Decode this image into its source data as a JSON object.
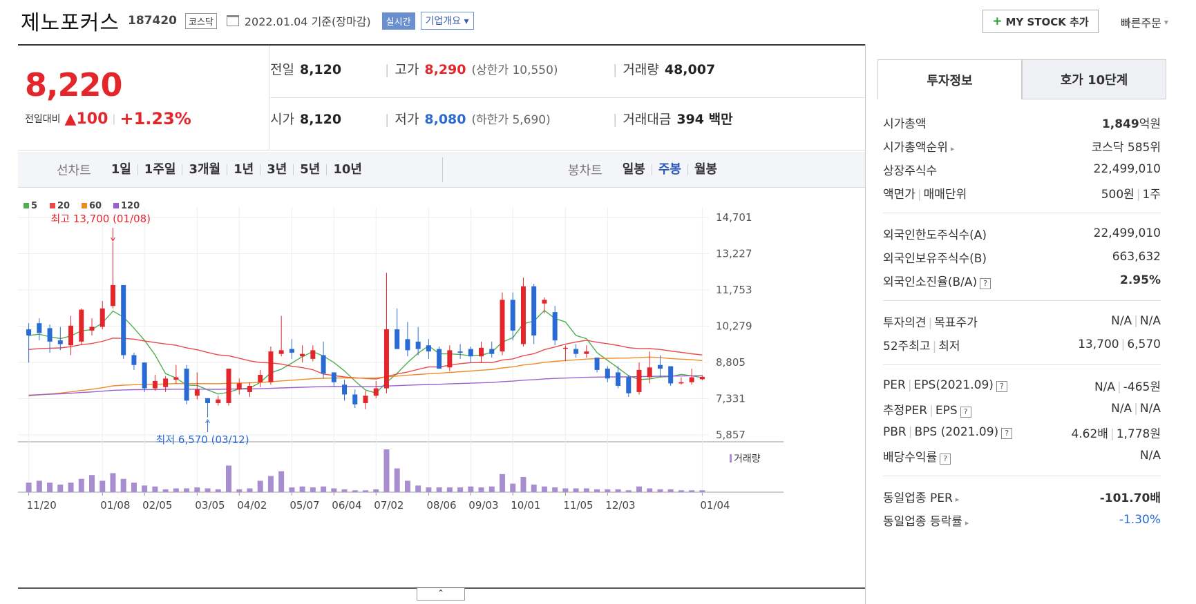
{
  "header": {
    "name": "제노포커스",
    "code": "187420",
    "market": "코스닥",
    "date": "2022.01.04 기준(장마감)",
    "realtime": "실시간",
    "overview": "기업개요",
    "mystock": "MY STOCK 추가",
    "quick_order": "빠른주문"
  },
  "price": {
    "current": "8,220",
    "change_label": "전일대비",
    "change": "100",
    "change_pct": "+1.23%"
  },
  "stats": {
    "prev_label": "전일",
    "prev": "8,120",
    "high_label": "고가",
    "high": "8,290",
    "upper_limit": "(상한가 10,550)",
    "volume_label": "거래량",
    "volume": "48,007",
    "open_label": "시가",
    "open": "8,120",
    "low_label": "저가",
    "low": "8,080",
    "lower_limit": "(하한가 5,690)",
    "amount_label": "거래대금",
    "amount": "394 백만"
  },
  "toolbar": {
    "line_label": "선차트",
    "line_items": [
      "1일",
      "1주일",
      "3개월",
      "1년",
      "3년",
      "5년",
      "10년"
    ],
    "candle_label": "봉차트",
    "candle_items": [
      "일봉",
      "주봉",
      "월봉"
    ],
    "candle_selected": "주봉"
  },
  "chart_data": {
    "type": "candlestick",
    "legend": [
      "5",
      "20",
      "60",
      "120"
    ],
    "legend_colors": [
      "#4caf50",
      "#e84a4a",
      "#f08a24",
      "#9a5fd0"
    ],
    "y_ticks": [
      "14,701",
      "13,227",
      "11,753",
      "10,279",
      "8,805",
      "7,331",
      "5,857"
    ],
    "ylim": [
      5857,
      14701
    ],
    "x_labels": [
      "11/20",
      "01/08",
      "02/05",
      "03/05",
      "04/02",
      "05/07",
      "06/04",
      "07/02",
      "08/06",
      "09/03",
      "10/01",
      "11/05",
      "12/03",
      "01/04"
    ],
    "max_annotation": "최고 13,700 (01/08)",
    "min_annotation": "최저 6,570 (03/12)",
    "volume_label": "거래량",
    "candles": [
      [
        10150,
        9900,
        10400,
        8800
      ],
      [
        10400,
        10000,
        10600,
        9700
      ],
      [
        10200,
        9650,
        10350,
        9200
      ],
      [
        9700,
        9550,
        10250,
        9300
      ],
      [
        9500,
        10300,
        10700,
        9100
      ],
      [
        9650,
        10950,
        11000,
        9500
      ],
      [
        10100,
        10250,
        10600,
        9900
      ],
      [
        10250,
        11000,
        11300,
        10150
      ],
      [
        11100,
        11950,
        13700,
        11000
      ],
      [
        11950,
        9100,
        11950,
        8950
      ],
      [
        9100,
        8700,
        9200,
        8500
      ],
      [
        8800,
        7750,
        8800,
        7600
      ],
      [
        7750,
        8050,
        8300,
        7650
      ],
      [
        7800,
        8150,
        8250,
        7600
      ],
      [
        8100,
        8200,
        8700,
        7950
      ],
      [
        8550,
        7250,
        8700,
        7100
      ],
      [
        7450,
        7700,
        8400,
        7300
      ],
      [
        7350,
        7150,
        7350,
        6570
      ],
      [
        7150,
        7300,
        7450,
        7050
      ],
      [
        7150,
        8550,
        8550,
        7050
      ],
      [
        7700,
        7950,
        8150,
        7500
      ],
      [
        7600,
        7850,
        8000,
        7400
      ],
      [
        8000,
        8300,
        8500,
        7800
      ],
      [
        8000,
        9250,
        9450,
        7900
      ],
      [
        9150,
        9300,
        10700,
        9050
      ],
      [
        9350,
        9200,
        9750,
        8950
      ],
      [
        9050,
        9150,
        9500,
        8800
      ],
      [
        8950,
        9300,
        9500,
        8850
      ],
      [
        9100,
        8350,
        9650,
        8150
      ],
      [
        8400,
        8000,
        8400,
        7800
      ],
      [
        7900,
        7500,
        8100,
        7250
      ],
      [
        7500,
        7100,
        7700,
        6950
      ],
      [
        7150,
        7450,
        7650,
        6900
      ],
      [
        7450,
        7750,
        8050,
        7350
      ],
      [
        7750,
        10150,
        12450,
        7550
      ],
      [
        10150,
        9350,
        11000,
        9350
      ],
      [
        9750,
        9300,
        10450,
        9050
      ],
      [
        9650,
        9350,
        10250,
        9100
      ],
      [
        9500,
        9250,
        9750,
        8950
      ],
      [
        9350,
        8550,
        9450,
        8550
      ],
      [
        8600,
        9300,
        9500,
        8450
      ],
      [
        9250,
        9200,
        9550,
        8950
      ],
      [
        9350,
        9050,
        9450,
        8800
      ],
      [
        9050,
        9400,
        9650,
        8800
      ],
      [
        9350,
        9150,
        9650,
        9000
      ],
      [
        9250,
        11350,
        11650,
        9100
      ],
      [
        11350,
        10100,
        11650,
        9700
      ],
      [
        9550,
        11900,
        12250,
        9450
      ],
      [
        11900,
        9900,
        12000,
        9550
      ],
      [
        11200,
        11350,
        11450,
        10800
      ],
      [
        10850,
        9700,
        11100,
        9500
      ],
      [
        9400,
        9400,
        9500,
        8850
      ],
      [
        9350,
        9150,
        9550,
        9000
      ],
      [
        9150,
        9250,
        9500,
        9000
      ],
      [
        9000,
        8500,
        9000,
        8400
      ],
      [
        8550,
        8150,
        8650,
        8000
      ],
      [
        8400,
        7850,
        8650,
        7750
      ],
      [
        8200,
        7550,
        8300,
        7400
      ],
      [
        7600,
        8500,
        8800,
        7500
      ],
      [
        8200,
        8600,
        9250,
        7950
      ],
      [
        8700,
        8550,
        9100,
        8200
      ],
      [
        8650,
        7950,
        8650,
        7850
      ],
      [
        7950,
        8000,
        8200,
        7900
      ],
      [
        8000,
        8200,
        8550,
        7900
      ],
      [
        8120,
        8220,
        8290,
        8080
      ]
    ],
    "volumes": [
      10,
      12,
      10,
      8,
      10,
      14,
      18,
      12,
      20,
      14,
      10,
      7,
      6,
      3,
      4,
      4,
      5,
      4,
      3,
      28,
      3,
      4,
      12,
      17,
      22,
      5,
      6,
      5,
      6,
      4,
      3,
      2,
      2,
      3,
      45,
      25,
      12,
      7,
      5,
      5,
      5,
      5,
      6,
      5,
      6,
      19,
      9,
      16,
      8,
      6,
      5,
      4,
      4,
      4,
      3,
      3,
      3,
      2,
      6,
      4,
      3,
      3,
      2,
      2,
      2
    ]
  },
  "right": {
    "tab_invest": "투자정보",
    "tab_hoga": "호가 10단계",
    "mcap_label": "시가총액",
    "mcap_num": "1,849",
    "mcap_unit": "억원",
    "mcap_rank_label": "시가총액순위",
    "mcap_rank": "코스닥 585위",
    "shares_label": "상장주식수",
    "shares": "22,499,010",
    "par_label": "액면가",
    "par_label2": "매매단위",
    "par": "500원",
    "unit": "1주",
    "foreign_limit_label": "외국인한도주식수(A)",
    "foreign_limit": "22,499,010",
    "foreign_hold_label": "외국인보유주식수(B)",
    "foreign_hold": "663,632",
    "foreign_ratio_label": "외국인소진율(B/A)",
    "foreign_ratio": "2.95%",
    "opinion_label": "투자의견",
    "target_label": "목표주가",
    "opinion": "N/A",
    "target": "N/A",
    "w52_label": "52주최고",
    "w52_low_label": "최저",
    "w52_high": "13,700",
    "w52_low": "6,570",
    "per_label": "PER",
    "eps_label": "EPS(2021.09)",
    "per": "N/A",
    "eps": "-465원",
    "est_per_label": "추정PER",
    "est_eps_label": "EPS",
    "est_per": "N/A",
    "est_eps": "N/A",
    "pbr_label": "PBR",
    "bps_label": "BPS (2021.09)",
    "pbr": "4.62배",
    "bps": "1,778원",
    "div_label": "배당수익률",
    "div": "N/A",
    "ind_per_label": "동일업종 PER",
    "ind_per": "-101.70배",
    "ind_rate_label": "동일업종 등락률",
    "ind_rate": "-1.30%"
  }
}
